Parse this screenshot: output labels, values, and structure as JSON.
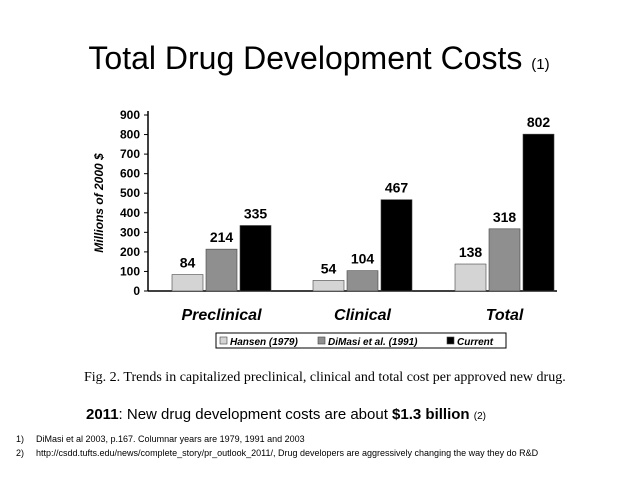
{
  "title": {
    "main": "Total Drug Development Costs",
    "ref": "(1)"
  },
  "chart_data": {
    "type": "bar",
    "ylabel": "Millions of 2000 $",
    "ylim": [
      0,
      900
    ],
    "yticks": [
      "0",
      "100",
      "200",
      "300",
      "400",
      "500",
      "600",
      "700",
      "800",
      "900"
    ],
    "categories": [
      "Preclinical",
      "Clinical",
      "Total"
    ],
    "series": [
      {
        "name": "Hansen (1979)",
        "color": "#d4d4d4",
        "values": [
          84,
          54,
          138
        ]
      },
      {
        "name": "DiMasi et al. (1991)",
        "color": "#8f8f8f",
        "values": [
          214,
          104,
          318
        ]
      },
      {
        "name": "Current",
        "color": "#000000",
        "values": [
          335,
          467,
          802
        ]
      }
    ],
    "data_labels": [
      [
        "84",
        "214",
        "335"
      ],
      [
        "54",
        "104",
        "467"
      ],
      [
        "138",
        "318",
        "802"
      ]
    ],
    "caption": "Fig. 2. Trends in capitalized preclinical, clinical and total cost per approved new drug."
  },
  "note": {
    "year": "2011",
    "text": ":  New drug development costs are about ",
    "amount": "$1.3 billion",
    "ref": "(2)"
  },
  "references": [
    {
      "num": "1)",
      "text": "DiMasi et al  2003, p.167.   Columnar years are 1979, 1991 and 2003"
    },
    {
      "num": "2)",
      "text": "http://csdd.tufts.edu/news/complete_story/pr_outlook_2011/,  Drug developers are aggressively changing the way they do R&D"
    }
  ]
}
